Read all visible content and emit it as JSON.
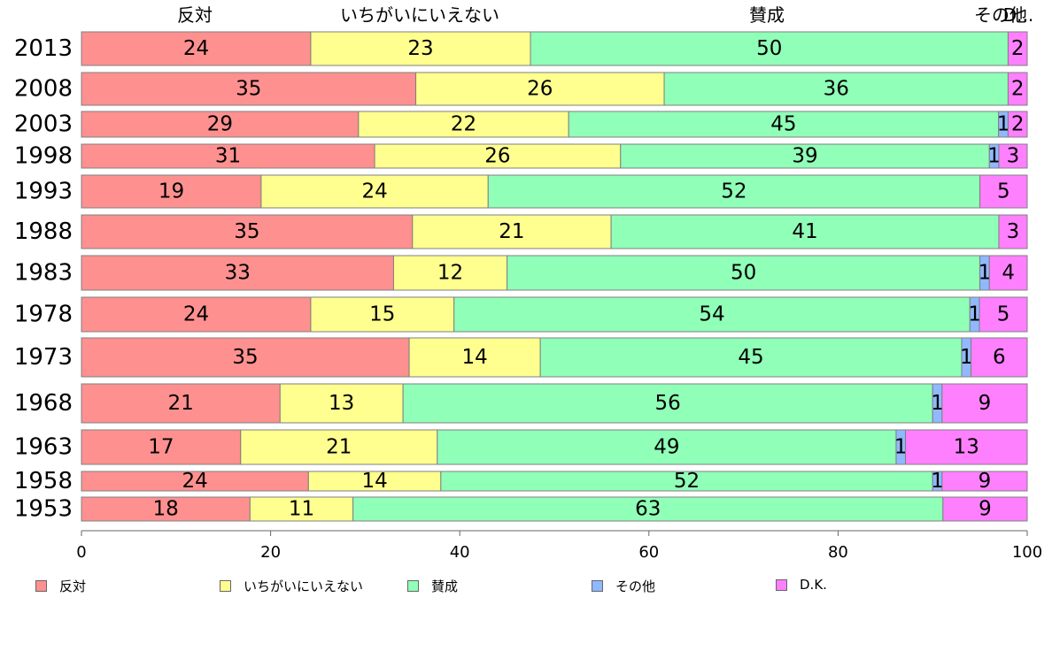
{
  "chart_data": {
    "type": "bar",
    "orientation": "horizontal",
    "stacked": true,
    "categories": [
      "2013",
      "2008",
      "2003",
      "1998",
      "1993",
      "1988",
      "1983",
      "1978",
      "1973",
      "1968",
      "1963",
      "1958",
      "1953"
    ],
    "series": [
      {
        "name": "反対",
        "color": "#ff9090",
        "values": [
          24,
          35,
          29,
          31,
          19,
          35,
          33,
          24,
          35,
          21,
          17,
          24,
          18
        ]
      },
      {
        "name": "いちがいにいえない",
        "color": "#ffff90",
        "values": [
          23,
          26,
          22,
          26,
          24,
          21,
          12,
          15,
          14,
          13,
          21,
          14,
          11
        ]
      },
      {
        "name": "賛成",
        "color": "#90ffb8",
        "values": [
          50,
          36,
          45,
          39,
          52,
          41,
          50,
          54,
          45,
          56,
          49,
          52,
          63
        ]
      },
      {
        "name": "その他",
        "color": "#90b8ff",
        "values": [
          0,
          0,
          1,
          1,
          0,
          0,
          1,
          1,
          1,
          1,
          1,
          1,
          0
        ]
      },
      {
        "name": "D.K.",
        "color": "#ff80ff",
        "values": [
          2,
          2,
          2,
          3,
          5,
          3,
          4,
          5,
          6,
          9,
          13,
          9,
          9
        ]
      }
    ],
    "top_labels": [
      "反対",
      "いちがいにいえない",
      "賛成",
      "その他",
      "D..."
    ],
    "xlim": [
      0,
      100
    ],
    "xticks": [
      "0",
      "20",
      "40",
      "60",
      "80",
      "100"
    ],
    "legend_position": "bottom"
  }
}
